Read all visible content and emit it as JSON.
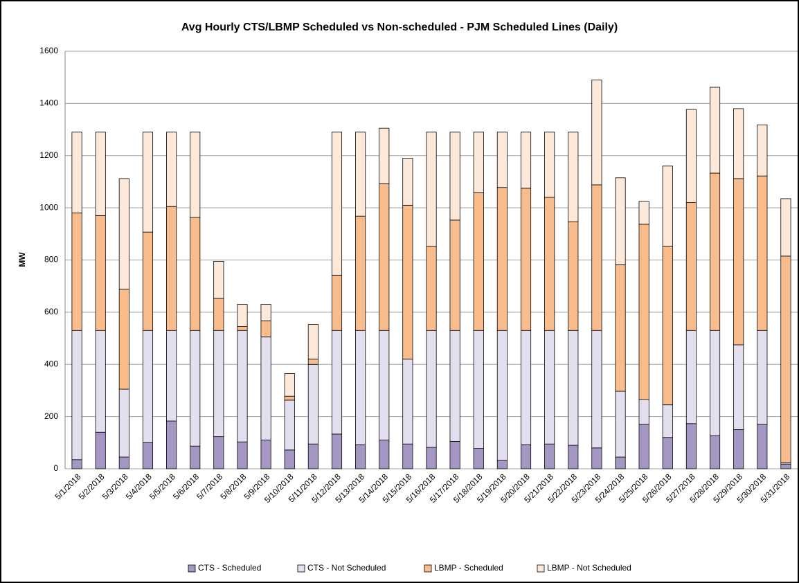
{
  "chart_data": {
    "type": "stacked_bar",
    "title": "Avg Hourly CTS/LBMP Scheduled vs Non-scheduled - PJM Scheduled Lines (Daily)",
    "y_label": "MW",
    "categories": [
      "5/1/2018",
      "5/2/2018",
      "5/3/2018",
      "5/4/2018",
      "5/5/2018",
      "5/6/2018",
      "5/7/2018",
      "5/8/2018",
      "5/9/2018",
      "5/10/2018",
      "5/11/2018",
      "5/12/2018",
      "5/13/2018",
      "5/14/2018",
      "5/15/2018",
      "5/16/2018",
      "5/17/2018",
      "5/18/2018",
      "5/19/2018",
      "5/20/2018",
      "5/21/2018",
      "5/22/2018",
      "5/23/2018",
      "5/24/2018",
      "5/25/2018",
      "5/26/2018",
      "5/27/2018",
      "5/28/2018",
      "5/29/2018",
      "5/30/2018",
      "5/31/2018"
    ],
    "series": [
      {
        "name": "CTS - Scheduled",
        "color": "#a597c4",
        "values": [
          35,
          140,
          45,
          100,
          183,
          87,
          123,
          103,
          110,
          72,
          95,
          133,
          92,
          110,
          95,
          82,
          105,
          78,
          32,
          92,
          95,
          90,
          80,
          45,
          170,
          120,
          173,
          127,
          150,
          170,
          18
        ]
      },
      {
        "name": "CTS - Not Scheduled",
        "color": "#e4dfef",
        "values": [
          495,
          390,
          260,
          430,
          347,
          443,
          407,
          427,
          395,
          191,
          305,
          397,
          438,
          420,
          325,
          448,
          425,
          452,
          498,
          438,
          435,
          440,
          450,
          252,
          95,
          125,
          357,
          403,
          325,
          360,
          5
        ]
      },
      {
        "name": "LBMP - Scheduled",
        "color": "#f9bc8c",
        "values": [
          450,
          440,
          383,
          377,
          475,
          433,
          123,
          15,
          62,
          15,
          20,
          212,
          438,
          562,
          590,
          323,
          423,
          528,
          548,
          545,
          510,
          417,
          558,
          485,
          672,
          608,
          490,
          603,
          637,
          592,
          792
        ]
      },
      {
        "name": "LBMP - Not Scheduled",
        "color": "#fde9d9",
        "values": [
          310,
          320,
          424,
          383,
          285,
          327,
          142,
          85,
          63,
          87,
          133,
          548,
          322,
          213,
          180,
          437,
          337,
          232,
          212,
          215,
          250,
          343,
          402,
          333,
          88,
          307,
          357,
          329,
          268,
          196,
          220
        ]
      }
    ],
    "ylim": [
      0,
      1600
    ],
    "yticks": [
      0,
      200,
      400,
      600,
      800,
      1000,
      1200,
      1400,
      1600
    ],
    "grid": true,
    "legend": "bottom"
  }
}
